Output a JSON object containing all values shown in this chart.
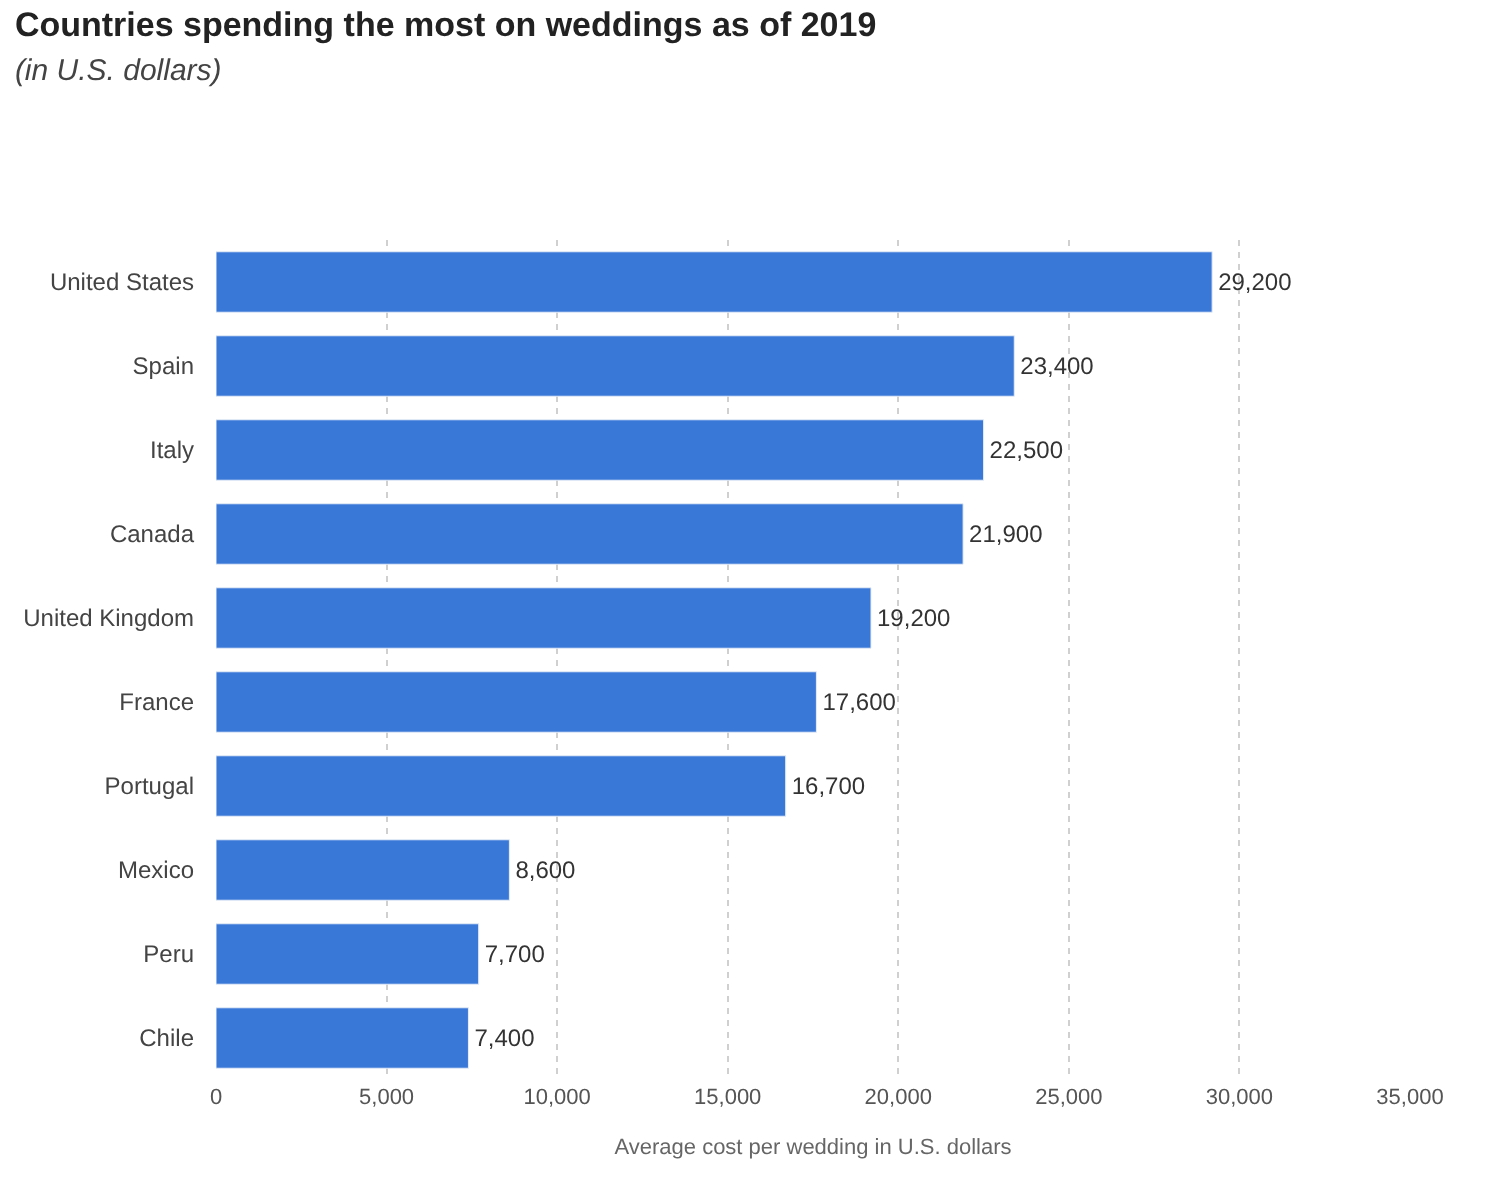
{
  "chart_data": {
    "type": "bar",
    "orientation": "horizontal",
    "title": "Countries spending the most on weddings as of 2019",
    "subtitle": "(in U.S. dollars)",
    "xlabel": "Average cost per wedding in U.S. dollars",
    "categories": [
      "United States",
      "Spain",
      "Italy",
      "Canada",
      "United Kingdom",
      "France",
      "Portugal",
      "Mexico",
      "Peru",
      "Chile"
    ],
    "values": [
      29200,
      23400,
      22500,
      21900,
      19200,
      17600,
      16700,
      8600,
      7700,
      7400
    ],
    "value_labels": [
      "29,200",
      "23,400",
      "22,500",
      "21,900",
      "19,200",
      "17,600",
      "16,700",
      "8,600",
      "7,700",
      "7,400"
    ],
    "color": "#3a78d8",
    "xlim": [
      0,
      35000
    ],
    "xticks": [
      0,
      {
        "value": 5000,
        "label": "5,000"
      },
      {
        "value": 10000,
        "label": "10,000"
      },
      {
        "value": 15000,
        "label": "15,000"
      },
      {
        "value": 20000,
        "label": "20,000"
      },
      {
        "value": 25000,
        "label": "25,000"
      },
      {
        "value": 30000,
        "label": "30,000"
      },
      {
        "value": 35000,
        "label": "35,000"
      }
    ],
    "grid": "x",
    "legend": false
  }
}
